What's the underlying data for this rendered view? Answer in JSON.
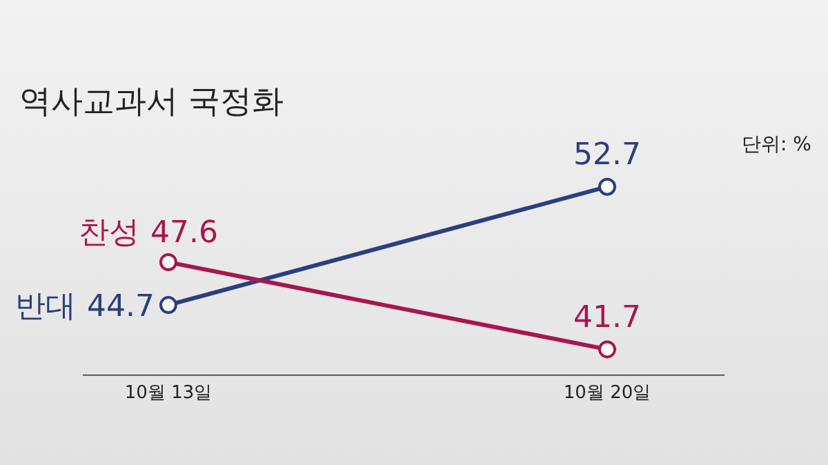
{
  "chart_data": {
    "type": "line",
    "title": "역사교과서 국정화",
    "annotations": [
      "단위: %"
    ],
    "categories": [
      "10월 13일",
      "10월 20일"
    ],
    "series": [
      {
        "name": "찬성",
        "color": "#a8164f",
        "values": [
          47.6,
          41.7
        ]
      },
      {
        "name": "반대",
        "color": "#2b3f7e",
        "values": [
          44.7,
          52.7
        ]
      }
    ],
    "data_labels": true,
    "legend": false,
    "grid": false,
    "marker": "circle",
    "line_style": "solid"
  }
}
